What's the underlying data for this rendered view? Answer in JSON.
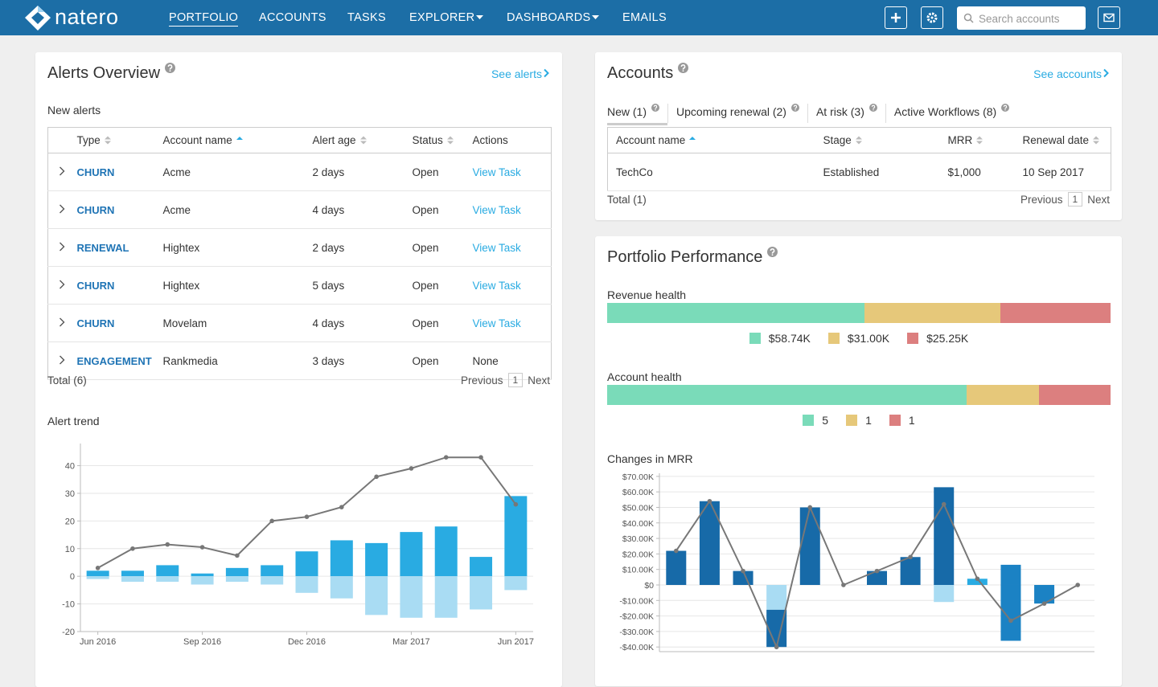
{
  "nav": {
    "brand": "natero",
    "items": [
      "PORTFOLIO",
      "ACCOUNTS",
      "TASKS",
      "EXPLORER",
      "DASHBOARDS",
      "EMAILS"
    ],
    "search_placeholder": "Search accounts"
  },
  "alerts": {
    "title": "Alerts Overview",
    "link": "See alerts",
    "section": "New alerts",
    "columns": [
      "Type",
      "Account name",
      "Alert age",
      "Status",
      "Actions"
    ],
    "rows": [
      [
        "CHURN",
        "Acme",
        "2 days",
        "Open",
        "View Task"
      ],
      [
        "CHURN",
        "Acme",
        "4 days",
        "Open",
        "View Task"
      ],
      [
        "RENEWAL",
        "Hightex",
        "2 days",
        "Open",
        "View Task"
      ],
      [
        "CHURN",
        "Hightex",
        "5 days",
        "Open",
        "View Task"
      ],
      [
        "CHURN",
        "Movelam",
        "4 days",
        "Open",
        "View Task"
      ],
      [
        "ENGAGEMENT",
        "Rankmedia",
        "3 days",
        "Open",
        "None"
      ]
    ],
    "total": "Total (6)",
    "pager": {
      "previous": "Previous",
      "page": "1",
      "next": "Next"
    }
  },
  "accounts": {
    "title": "Accounts",
    "link": "See accounts",
    "tabs": [
      "New (1)",
      "Upcoming renewal (2)",
      "At risk (3)",
      "Active Workflows (8)"
    ],
    "columns": [
      "Account name",
      "Stage",
      "MRR",
      "Renewal date"
    ],
    "rows": [
      [
        "TechCo",
        "Established",
        "$1,000",
        "10 Sep 2017"
      ]
    ],
    "total": "Total (1)",
    "pager": {
      "previous": "Previous",
      "page": "1",
      "next": "Next"
    }
  },
  "portfolio": {
    "title": "Portfolio Performance"
  },
  "chart_data": [
    {
      "type": "combo",
      "title": "Alert trend",
      "categories": [
        "Jun 2016",
        null,
        null,
        "Sep 2016",
        null,
        null,
        "Dec 2016",
        null,
        null,
        "Mar 2017",
        null,
        null,
        "Jun 2017"
      ],
      "ylim": [
        -20,
        48
      ],
      "yticks": [
        -20,
        -10,
        0,
        10,
        20,
        30,
        40
      ],
      "grid": true,
      "series": [
        {
          "type": "bar",
          "color": "#29abe2",
          "values": [
            2,
            2,
            4,
            1,
            3,
            4,
            9,
            13,
            12,
            16,
            18,
            7,
            29
          ]
        },
        {
          "type": "bar",
          "color": "#a9dcf3",
          "values": [
            -1,
            -2,
            -2,
            -3,
            -2,
            -3,
            -6,
            -8,
            -14,
            -15,
            -15,
            -12,
            -5
          ]
        },
        {
          "type": "line",
          "color": "#777777",
          "values": [
            3,
            10,
            11.5,
            10.5,
            7.5,
            20,
            21.5,
            25,
            36,
            39,
            43,
            43,
            26
          ]
        }
      ]
    },
    {
      "type": "proportion",
      "title": "Revenue health",
      "values": [
        58740,
        31000,
        25250
      ],
      "value_labels": [
        "$58.74K",
        "$31.00K",
        "$25.25K"
      ],
      "colors": [
        "#7adbb9",
        "#e6c87a",
        "#dc7f7f"
      ]
    },
    {
      "type": "proportion",
      "title": "Account health",
      "values": [
        5,
        1,
        1
      ],
      "colors": [
        "#7adbb9",
        "#e6c87a",
        "#dc7f7f"
      ]
    },
    {
      "type": "combo",
      "title": "Changes in MRR",
      "ylim": [
        -43000,
        72000
      ],
      "grid": true,
      "yticks": [
        {
          "value": -40000,
          "label": "-$40.00K"
        },
        {
          "value": -30000,
          "label": "-$30.00K"
        },
        {
          "value": -20000,
          "label": "-$20.00K"
        },
        {
          "value": -10000,
          "label": "-$10.00K"
        },
        {
          "value": 0,
          "label": "$0"
        },
        {
          "value": 10000,
          "label": "$10.00K"
        },
        {
          "value": 20000,
          "label": "$20.00K"
        },
        {
          "value": 30000,
          "label": "$30.00K"
        },
        {
          "value": 40000,
          "label": "$40.00K"
        },
        {
          "value": 50000,
          "label": "$50.00K"
        },
        {
          "value": 60000,
          "label": "$60.00K"
        },
        {
          "value": 70000,
          "label": "$70.00K"
        }
      ],
      "series": [
        {
          "type": "bar",
          "color": "#176aa8",
          "values": [
            22000,
            54000,
            9000,
            null,
            50000,
            null,
            9000,
            18000,
            63000,
            null,
            null,
            null,
            null
          ]
        },
        {
          "type": "bar",
          "color": "#a9dcf3",
          "values": [
            null,
            null,
            null,
            -16000,
            null,
            null,
            null,
            null,
            -11000,
            null,
            null,
            null,
            null
          ]
        },
        {
          "type": "bar",
          "color": "#176aa8",
          "values": [
            null,
            null,
            null,
            -24000,
            null,
            null,
            null,
            null,
            null,
            null,
            null,
            null,
            null
          ]
        },
        {
          "type": "bar",
          "color": "#29abe2",
          "values": [
            null,
            null,
            null,
            null,
            null,
            null,
            null,
            null,
            null,
            4000,
            null,
            null,
            null
          ]
        },
        {
          "type": "bar",
          "color": "#1b82c4",
          "values": [
            null,
            null,
            null,
            null,
            null,
            null,
            null,
            null,
            null,
            null,
            13000,
            null,
            null
          ]
        },
        {
          "type": "bar",
          "color": "#1b82c4",
          "values": [
            null,
            null,
            null,
            null,
            null,
            null,
            null,
            null,
            null,
            null,
            -36000,
            -12000,
            null
          ]
        },
        {
          "type": "line",
          "color": "#777777",
          "values": [
            22000,
            54000,
            9000,
            -40000,
            50000,
            0,
            9000,
            18000,
            52000,
            4000,
            -23000,
            -12000,
            0
          ]
        }
      ]
    }
  ]
}
